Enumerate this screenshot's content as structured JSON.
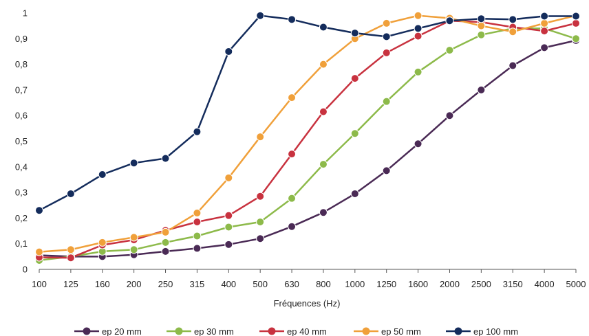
{
  "chart_data": {
    "type": "line",
    "title": "",
    "xlabel": "Fréquences (Hz)",
    "ylabel": "",
    "ylim": [
      0,
      1
    ],
    "yticks": [
      0,
      0.1,
      0.2,
      0.3,
      0.4,
      0.5,
      0.6,
      0.7,
      0.8,
      0.9,
      1
    ],
    "ytick_labels": [
      "0",
      "0,1",
      "0,2",
      "0,3",
      "0,4",
      "0,5",
      "0,6",
      "0,7",
      "0,8",
      "0,9",
      "1"
    ],
    "categories": [
      "100",
      "125",
      "160",
      "200",
      "250",
      "315",
      "400",
      "500",
      "630",
      "800",
      "1000",
      "1250",
      "1600",
      "2000",
      "2500",
      "3150",
      "4000",
      "5000"
    ],
    "grid": false,
    "legend_position": "bottom",
    "series": [
      {
        "name": "ep 20 mm",
        "color": "#4a2a55",
        "values": [
          0.055,
          0.05,
          0.05,
          0.057,
          0.07,
          0.082,
          0.097,
          0.12,
          0.167,
          0.222,
          0.295,
          0.385,
          0.49,
          0.6,
          0.7,
          0.795,
          0.865,
          0.893
        ]
      },
      {
        "name": "ep 30 mm",
        "color": "#8dba4a",
        "values": [
          0.035,
          0.05,
          0.07,
          0.077,
          0.105,
          0.13,
          0.165,
          0.185,
          0.277,
          0.41,
          0.53,
          0.655,
          0.77,
          0.855,
          0.915,
          0.94,
          0.94,
          0.9
        ]
      },
      {
        "name": "ep 40 mm",
        "color": "#c8323f",
        "values": [
          0.047,
          0.045,
          0.095,
          0.115,
          0.152,
          0.185,
          0.21,
          0.285,
          0.45,
          0.615,
          0.745,
          0.845,
          0.91,
          0.97,
          0.965,
          0.945,
          0.93,
          0.96
        ]
      },
      {
        "name": "ep 50 mm",
        "color": "#f0a03a",
        "values": [
          0.068,
          0.077,
          0.105,
          0.125,
          0.145,
          0.22,
          0.357,
          0.517,
          0.67,
          0.8,
          0.9,
          0.96,
          0.99,
          0.98,
          0.95,
          0.927,
          0.96,
          0.99
        ]
      },
      {
        "name": "ep 100 mm",
        "color": "#142c5c",
        "values": [
          0.23,
          0.295,
          0.37,
          0.415,
          0.433,
          0.537,
          0.85,
          0.99,
          0.975,
          0.945,
          0.922,
          0.908,
          0.94,
          0.97,
          0.978,
          0.975,
          0.988,
          0.988
        ]
      }
    ]
  }
}
